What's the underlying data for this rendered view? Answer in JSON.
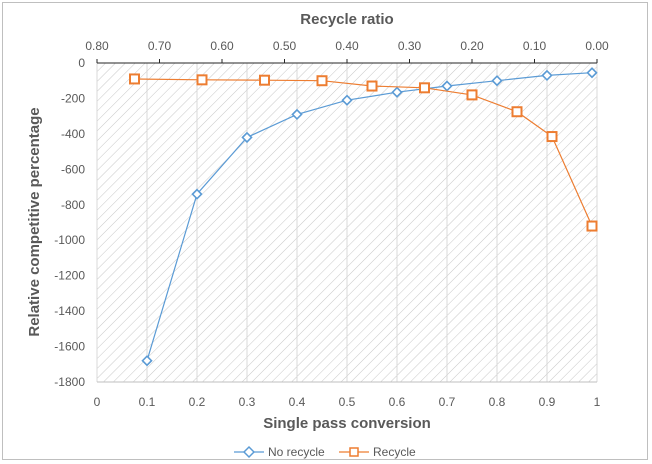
{
  "chart_data": {
    "type": "scatter",
    "title": "",
    "xlabel": "Single pass conversion",
    "x2label": "Recycle ratio",
    "ylabel": "Relative competitive percentage",
    "xlim": [
      0,
      1
    ],
    "x2lim": [
      0.8,
      0.0
    ],
    "ylim": [
      -1800,
      0
    ],
    "x_ticks": [
      "0",
      "0.1",
      "0.2",
      "0.3",
      "0.4",
      "0.5",
      "0.6",
      "0.7",
      "0.8",
      "0.9",
      "1"
    ],
    "x2_ticks": [
      "0.80",
      "0.70",
      "0.60",
      "0.50",
      "0.40",
      "0.30",
      "0.20",
      "0.10",
      "0.00"
    ],
    "y_ticks": [
      "0",
      "-200",
      "-400",
      "-600",
      "-800",
      "-1000",
      "-1200",
      "-1400",
      "-1600",
      "-1800"
    ],
    "grid": "vertical",
    "legend_position": "bottom",
    "series": [
      {
        "name": "No recycle",
        "color": "#5b9bd5",
        "marker": "diamond",
        "x": [
          0.1,
          0.2,
          0.3,
          0.4,
          0.5,
          0.6,
          0.7,
          0.8,
          0.9,
          0.99
        ],
        "y": [
          -1680,
          -740,
          -420,
          -290,
          -210,
          -165,
          -130,
          -100,
          -70,
          -55
        ]
      },
      {
        "name": "Recycle",
        "color": "#ed7d31",
        "marker": "square",
        "x": [
          0.075,
          0.21,
          0.335,
          0.45,
          0.55,
          0.655,
          0.75,
          0.84,
          0.91,
          0.99
        ],
        "y": [
          -90,
          -95,
          -97,
          -100,
          -130,
          -140,
          -180,
          -275,
          -415,
          -920
        ]
      }
    ]
  }
}
